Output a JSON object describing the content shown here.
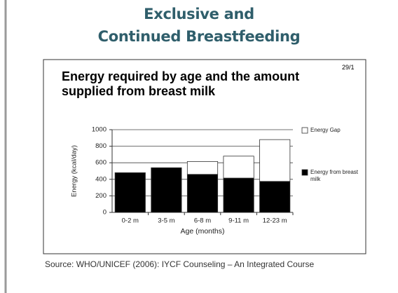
{
  "slide": {
    "title": [
      "Exclusive and",
      "Continued Breastfeeding"
    ],
    "page_ref": "29/1",
    "source": "Source: WHO/UNICEF (2006): IYCF Counseling – An Integrated Course"
  },
  "chart_data": {
    "type": "stacked_bar",
    "title": "Energy required by age and the amount supplied from breast milk",
    "x_label": "Age (months)",
    "y_label": "Energy (kcal/day)",
    "categories": [
      "0-2 m",
      "3-5 m",
      "6-8 m",
      "9-11 m",
      "12-23 m"
    ],
    "series": [
      {
        "name": "Energy from breast milk",
        "color": "#000000",
        "values": [
          480,
          540,
          460,
          415,
          375
        ]
      },
      {
        "name": "Energy Gap",
        "color": "#ffffff",
        "values": [
          0,
          0,
          155,
          265,
          505
        ]
      }
    ],
    "ylim": [
      0,
      1000
    ],
    "yticks": [
      0,
      200,
      400,
      600,
      800,
      1000
    ],
    "grid": true
  }
}
